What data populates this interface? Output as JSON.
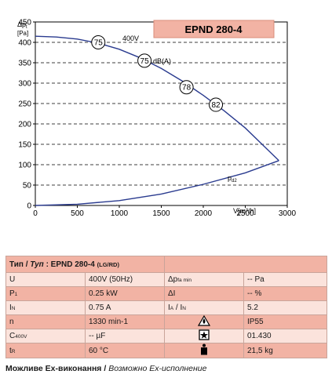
{
  "chart_data": {
    "type": "line",
    "title": "EPND 280-4",
    "xlabel": "V[m³/h]",
    "ylabel_main": "Δp",
    "ylabel_sub": "t",
    "ylabel_unit": "[Pa]",
    "xlim": [
      0,
      3000
    ],
    "ylim": [
      0,
      450
    ],
    "x_ticks": [
      0,
      500,
      1000,
      1500,
      2000,
      2500,
      3000
    ],
    "y_ticks": [
      0,
      50,
      100,
      150,
      200,
      250,
      300,
      350,
      400,
      450
    ],
    "grid": "y",
    "series": [
      {
        "name": "400V",
        "x": [
          0,
          250,
          500,
          750,
          1000,
          1250,
          1500,
          1750,
          2000,
          2250,
          2500,
          2700,
          2900
        ],
        "y": [
          415,
          413,
          408,
          398,
          383,
          362,
          336,
          305,
          270,
          232,
          190,
          150,
          110
        ]
      }
    ],
    "pd_curve": {
      "name": "pd2",
      "x": [
        0,
        500,
        1000,
        1500,
        2000,
        2500,
        2900
      ],
      "y": [
        0,
        3,
        12,
        28,
        52,
        80,
        110
      ]
    },
    "pd_label_main": "p",
    "pd_label_sub": "d2",
    "voltage_label": "400V",
    "db_label": "dB(A)",
    "noise_markers": [
      {
        "value": "75",
        "x": 750,
        "y": 400
      },
      {
        "value": "75",
        "x": 1300,
        "y": 355
      },
      {
        "value": "78",
        "x": 1800,
        "y": 290
      },
      {
        "value": "82",
        "x": 2150,
        "y": 247
      }
    ]
  },
  "table": {
    "header": {
      "lead": "Тип /",
      "lead_it": "Туп",
      "model": " : EPND 280-4",
      "suffix": "(LG/RD)"
    },
    "rows": [
      {
        "k1": "U",
        "v1": "400V (50Hz)",
        "k2": "Δp",
        "k2_sub": "fa min",
        "v2": "-- Pa"
      },
      {
        "k1": "P",
        "k1_sub": "1",
        "v1": "0.25 kW",
        "k2": "ΔI",
        "v2": "-- %"
      },
      {
        "k1": "I",
        "k1_sub": "N",
        "v1": "0.75 A",
        "k2": "I",
        "k2_sub": "A",
        "k2_rest": " / I",
        "k2_sub2": "N",
        "v2": "5.2"
      },
      {
        "k1": "n",
        "v1": "1330 min-1",
        "icon": "ip-protection-icon",
        "v2": "IP55"
      },
      {
        "k1": "C",
        "k1_sub": "400V",
        "v1": "-- µF",
        "icon": "wiring-diagram-icon",
        "v2": "01.430"
      },
      {
        "k1": "t",
        "k1_sub": "R",
        "v1": "60 °C",
        "icon": "weight-icon",
        "v2": "21,5 kg"
      }
    ]
  },
  "footer": {
    "bold": "Можливе Ex-виконання /",
    "italic": " Возможно Ex-исполнение"
  },
  "colors": {
    "curve": "#2a3b8f",
    "title_box": "#f2b3a4",
    "table_dark": "#f2b3a4",
    "table_light": "#fbe3dc",
    "grid": "#000000"
  }
}
